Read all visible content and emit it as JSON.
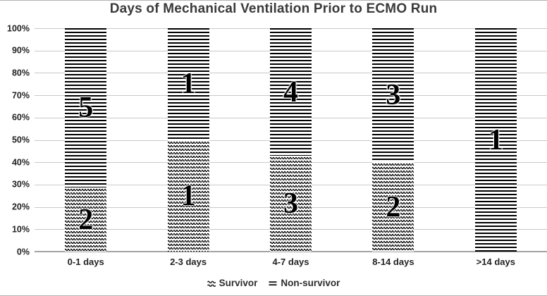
{
  "chart_data": {
    "type": "bar",
    "subtype": "stacked-100-percent",
    "title": "Days of Mechanical Ventilation Prior to ECMO Run",
    "categories": [
      "0-1 days",
      "2-3 days",
      "4-7 days",
      "8-14 days",
      ">14 days"
    ],
    "series": [
      {
        "name": "Survivor",
        "pattern": "zigzag-wave",
        "values": [
          2,
          1,
          3,
          2,
          0
        ]
      },
      {
        "name": "Non-survivor",
        "pattern": "horizontal-lines",
        "values": [
          5,
          1,
          4,
          3,
          1
        ]
      }
    ],
    "segment_percentages_estimated": {
      "survivor": [
        29,
        50,
        43,
        40,
        0
      ],
      "non_survivor": [
        71,
        50,
        57,
        60,
        100
      ]
    },
    "y_ticks": [
      "0%",
      "10%",
      "20%",
      "30%",
      "40%",
      "50%",
      "60%",
      "70%",
      "80%",
      "90%",
      "100%"
    ],
    "ylim": [
      0,
      100
    ],
    "grid": true,
    "legend_position": "bottom",
    "colors": {
      "pattern_foreground": "#000000",
      "background": "#ffffff",
      "gridline": "#c9c9c9",
      "axis_line": "#a3a3a3",
      "title_text": "#3a3a3a",
      "tick_text": "#232323"
    }
  }
}
